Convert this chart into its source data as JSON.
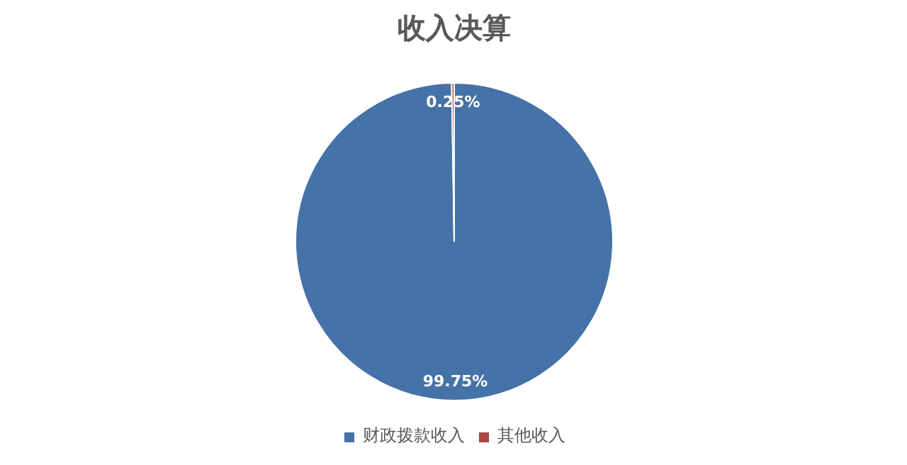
{
  "chart_data": {
    "type": "pie",
    "title": "收入决算",
    "categories": [
      "财政拨款收入",
      "其他收入"
    ],
    "values": [
      99.75,
      0.25
    ],
    "colors": [
      "#4572a7",
      "#aa4643"
    ],
    "value_labels": [
      "99.75%",
      "0.25%"
    ],
    "legend": "bottom"
  }
}
